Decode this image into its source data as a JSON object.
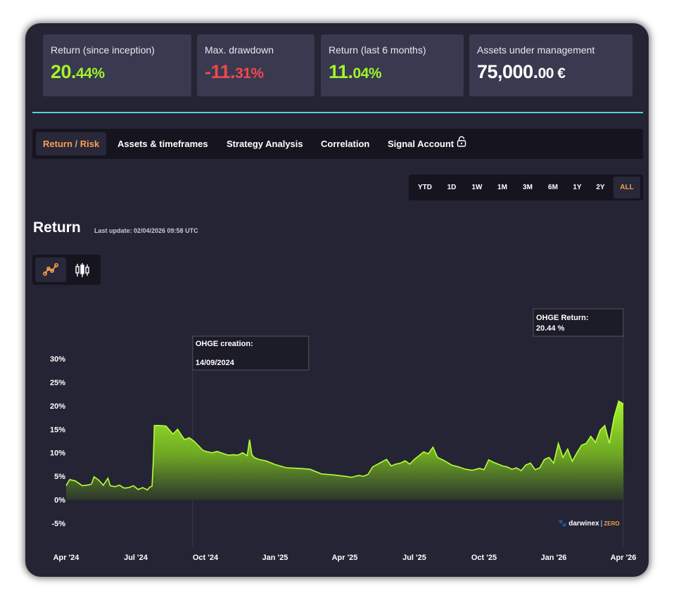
{
  "stats": [
    {
      "label": "Return (since inception)",
      "value_main": "20.",
      "value_small": "44%",
      "color": "#a3f32c"
    },
    {
      "label": "Max. drawdown",
      "value_main": "-11.",
      "value_small": "31%",
      "color": "#f2474e"
    },
    {
      "label": "Return (last 6 months)",
      "value_main": "11.",
      "value_small": "04%",
      "color": "#a3f32c"
    },
    {
      "label": "Assets under management",
      "value_main": "75,000.",
      "value_small": "00 €",
      "color": "#ffffff"
    }
  ],
  "tabs": [
    "Return / Risk",
    "Assets & timeframes",
    "Strategy Analysis",
    "Correlation",
    "Signal Account"
  ],
  "active_tab": "Return / Risk",
  "ranges": [
    "YTD",
    "1D",
    "1W",
    "1M",
    "3M",
    "6M",
    "1Y",
    "2Y",
    "ALL"
  ],
  "active_range": "ALL",
  "section": {
    "title": "Return",
    "last_update": "Last update: 02/04/2026 09:58 UTC"
  },
  "chart_toggle": {
    "line_icon": "line-chart-icon",
    "candle_icon": "candlestick-icon"
  },
  "watermark": {
    "brand": "darwinex",
    "tag": "ZERO"
  },
  "colors": {
    "accent": "#f6a04d",
    "positive": "#a3f32c",
    "negative": "#f2474e",
    "divider": "#4fd4e0"
  },
  "chart_data": {
    "type": "area",
    "title": "Return",
    "xlabel": "",
    "ylabel": "",
    "ylim": [
      -5,
      30
    ],
    "yticks": [
      30,
      25,
      20,
      15,
      10,
      5,
      0,
      -5
    ],
    "ytick_labels": [
      "30%",
      "25%",
      "20%",
      "15%",
      "10%",
      "5%",
      "0%",
      "-5%"
    ],
    "xlim": [
      0,
      24
    ],
    "xticks": [
      0,
      3,
      6,
      9,
      12,
      15,
      18,
      21,
      24
    ],
    "xtick_labels": [
      "Apr '24",
      "Jul '24",
      "Oct '24",
      "Jan '25",
      "Apr '25",
      "Jul '25",
      "Oct '25",
      "Jan '26",
      "Apr '26"
    ],
    "series": [
      {
        "name": "OHGE Return",
        "x": [
          0.0,
          0.15,
          0.4,
          0.7,
          1.0,
          1.1,
          1.2,
          1.4,
          1.6,
          1.8,
          1.9,
          2.1,
          2.3,
          2.5,
          2.7,
          2.9,
          3.1,
          3.3,
          3.5,
          3.6,
          3.7,
          3.75,
          3.8,
          4.0,
          4.3,
          4.6,
          4.8,
          5.0,
          5.1,
          5.3,
          5.5,
          5.7,
          5.9,
          6.1,
          6.3,
          6.5,
          6.8,
          7.0,
          7.2,
          7.4,
          7.6,
          7.8,
          7.9,
          8.0,
          8.1,
          8.3,
          8.6,
          9.0,
          9.5,
          10.0,
          10.5,
          11.0,
          11.5,
          12.0,
          12.3,
          12.6,
          12.8,
          13.0,
          13.2,
          13.5,
          13.8,
          14.0,
          14.2,
          14.4,
          14.6,
          14.8,
          15.0,
          15.2,
          15.4,
          15.6,
          15.8,
          16.0,
          16.3,
          16.6,
          16.9,
          17.2,
          17.5,
          17.8,
          18.0,
          18.2,
          18.4,
          18.6,
          18.8,
          19.0,
          19.2,
          19.4,
          19.6,
          19.8,
          20.0,
          20.2,
          20.4,
          20.6,
          20.8,
          21.0,
          21.2,
          21.4,
          21.6,
          21.8,
          22.0,
          22.2,
          22.4,
          22.6,
          22.8,
          23.0,
          23.2,
          23.4,
          23.6,
          23.8,
          24.0
        ],
        "values": [
          3.0,
          4.3,
          4.0,
          3.0,
          3.2,
          3.4,
          4.9,
          4.2,
          3.1,
          4.6,
          3.0,
          2.8,
          3.1,
          2.5,
          2.6,
          3.0,
          2.2,
          2.6,
          2.1,
          2.7,
          2.9,
          8.0,
          15.8,
          15.8,
          15.7,
          14.0,
          15.0,
          13.5,
          12.8,
          13.2,
          12.5,
          11.5,
          10.5,
          10.2,
          10.0,
          10.3,
          9.8,
          9.5,
          9.6,
          9.5,
          10.0,
          9.4,
          12.8,
          9.6,
          9.0,
          8.6,
          8.3,
          7.5,
          6.8,
          6.7,
          6.5,
          5.5,
          5.3,
          5.0,
          4.8,
          5.2,
          5.0,
          5.4,
          7.0,
          7.8,
          8.6,
          7.2,
          7.6,
          7.8,
          8.3,
          7.6,
          8.6,
          9.4,
          10.2,
          9.8,
          11.2,
          9.0,
          8.3,
          7.4,
          7.0,
          6.5,
          6.3,
          6.7,
          6.4,
          8.5,
          8.0,
          7.6,
          7.2,
          7.0,
          6.5,
          6.8,
          6.2,
          7.4,
          7.8,
          6.4,
          6.8,
          8.6,
          9.0,
          7.8,
          12.0,
          9.0,
          10.8,
          8.2,
          10.0,
          11.6,
          12.0,
          13.5,
          12.2,
          14.8,
          15.8,
          12.0,
          17.5,
          21.0,
          20.4
        ]
      }
    ],
    "annotations": [
      {
        "label": "OHGE creation:",
        "value": "14/09/2024",
        "x": 5.45
      },
      {
        "label": "OHGE Return:",
        "value": "20.44 %",
        "x": 24.0
      }
    ]
  }
}
